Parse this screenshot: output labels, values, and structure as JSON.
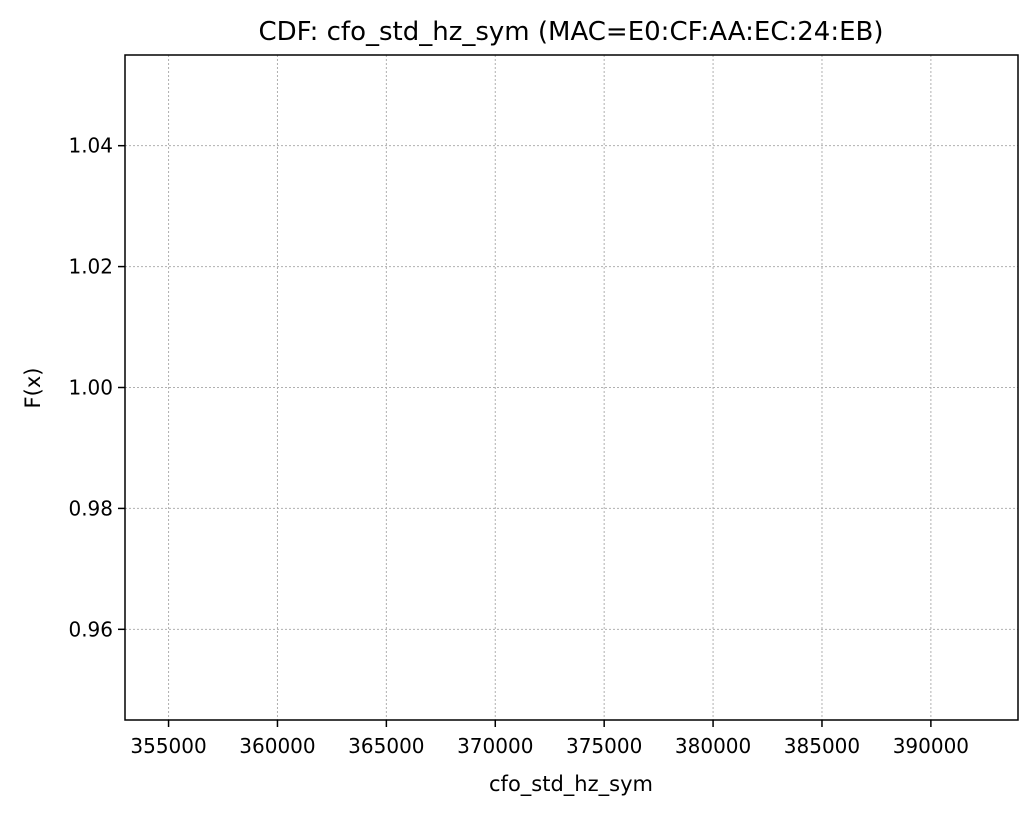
{
  "chart_data": {
    "type": "line",
    "title": "CDF: cfo_std_hz_sym (MAC=E0:CF:AA:EC:24:EB)",
    "xlabel": "cfo_std_hz_sym",
    "ylabel": "F(x)",
    "xlim": [
      353000,
      394000
    ],
    "ylim": [
      0.945,
      1.055
    ],
    "xticks": [
      355000,
      360000,
      365000,
      370000,
      375000,
      380000,
      385000,
      390000
    ],
    "xtick_labels": [
      "355000",
      "360000",
      "365000",
      "370000",
      "375000",
      "380000",
      "385000",
      "390000"
    ],
    "yticks": [
      0.96,
      0.98,
      1.0,
      1.02,
      1.04
    ],
    "ytick_labels": [
      "0.96",
      "0.98",
      "1.00",
      "1.02",
      "1.04"
    ],
    "grid": true,
    "series": []
  }
}
